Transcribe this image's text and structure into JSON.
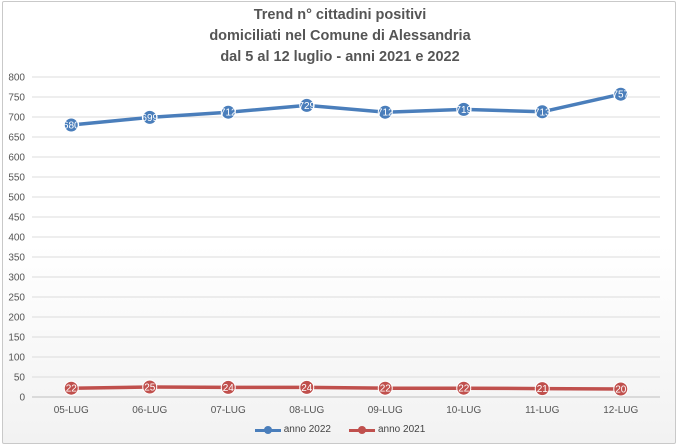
{
  "chart_data": {
    "type": "line",
    "title": [
      "Trend n° cittadini positivi",
      "domiciliati nel Comune di Alessandria",
      "dal 5 al 12 luglio - anni 2021 e 2022"
    ],
    "categories": [
      "05-LUG",
      "06-LUG",
      "07-LUG",
      "08-LUG",
      "09-LUG",
      "10-LUG",
      "11-LUG",
      "12-LUG"
    ],
    "ylim": [
      0,
      800
    ],
    "yticks": [
      0,
      50,
      100,
      150,
      200,
      250,
      300,
      350,
      400,
      450,
      500,
      550,
      600,
      650,
      700,
      750,
      800
    ],
    "grid": true,
    "legend_position": "bottom",
    "series": [
      {
        "name": "anno 2022",
        "color": "#4a7ebb",
        "values": [
          680,
          699,
          712,
          729,
          712,
          719,
          713,
          757
        ],
        "point_labels": [
          "680",
          "699",
          "712",
          "729",
          "712",
          "719",
          "713",
          "757"
        ]
      },
      {
        "name": "anno 2021",
        "color": "#c0504d",
        "values": [
          22,
          25,
          24,
          24,
          22,
          22,
          21,
          20
        ],
        "point_labels": [
          "22",
          "25",
          "24",
          "24",
          "22",
          "22",
          "21",
          "20"
        ]
      }
    ]
  }
}
